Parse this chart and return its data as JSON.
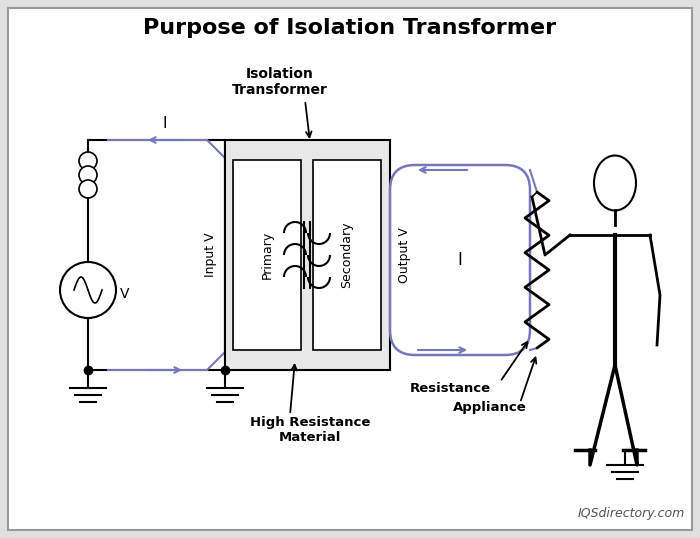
{
  "title": "Purpose of Isolation Transformer",
  "title_fontsize": 16,
  "bg_color": "#e0e0e0",
  "inner_bg": "#ffffff",
  "line_color": "#000000",
  "blue_color": "#7777bb",
  "border_color": "#999999",
  "watermark": "IQSdirectory.com",
  "labels": {
    "isolation_transformer": "Isolation\nTransformer",
    "primary": "Primary",
    "secondary": "Secondary",
    "input_v": "Input V",
    "output_v": "Output V",
    "high_resistance": "High Resistance\nMaterial",
    "resistance": "Resistance",
    "appliance": "Appliance",
    "I_left": "I",
    "I_right": "I",
    "V": "V"
  }
}
